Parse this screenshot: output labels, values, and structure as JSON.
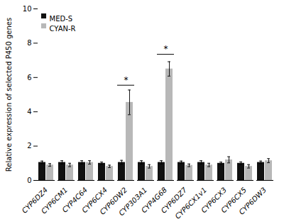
{
  "chart_data": {
    "type": "bar",
    "categories": [
      "CYP6DZ4",
      "CYP6CM1",
      "CYP4C64",
      "CYP6CX4",
      "CYP6DW2",
      "CYP303A1",
      "CYP4G68",
      "CYP6DZ7",
      "CYP6CX1v1",
      "CYP6CX3",
      "CYP6CX5",
      "CYP6DW3"
    ],
    "series": [
      {
        "name": "MED-S",
        "color": "#111111",
        "values": [
          1.05,
          1.05,
          1.05,
          1.0,
          1.05,
          1.05,
          1.05,
          1.05,
          1.05,
          1.0,
          1.0,
          1.05
        ],
        "errors": [
          0.08,
          0.1,
          0.1,
          0.07,
          0.12,
          0.1,
          0.1,
          0.08,
          0.1,
          0.07,
          0.08,
          0.08
        ]
      },
      {
        "name": "CYAN-R",
        "color": "#b8b8b8",
        "values": [
          0.9,
          0.9,
          1.05,
          0.82,
          4.55,
          0.82,
          6.5,
          0.88,
          0.9,
          1.2,
          0.82,
          1.15
        ],
        "errors": [
          0.08,
          0.1,
          0.1,
          0.07,
          0.72,
          0.1,
          0.42,
          0.08,
          0.1,
          0.18,
          0.1,
          0.12
        ]
      }
    ],
    "ylabel": "Relative expression of selected P450 genes",
    "ylim": [
      0,
      10
    ],
    "yticks": [
      0,
      2,
      4,
      6,
      8,
      10
    ],
    "legend": "upper left",
    "annotations": [
      {
        "category": "CYP6DW2",
        "y": 5.55,
        "label_y": 5.7,
        "text": "*"
      },
      {
        "category": "CYP4G68",
        "y": 7.35,
        "label_y": 7.5,
        "text": "*"
      }
    ]
  }
}
